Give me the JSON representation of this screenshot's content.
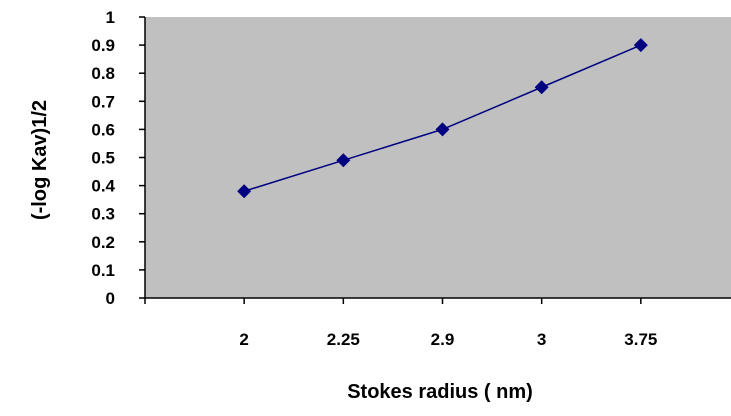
{
  "chart_data": {
    "type": "line",
    "title": "",
    "xlabel": "Stokes radius ( nm)",
    "ylabel": "(-log Kav)1/2",
    "categories": [
      "2",
      "2.25",
      "2.9",
      "3",
      "3.75"
    ],
    "series": [
      {
        "values": [
          0.38,
          0.49,
          0.6,
          0.75,
          0.9
        ]
      }
    ],
    "ylim": [
      0,
      1
    ],
    "yticks": [
      "0",
      "0.1",
      "0.2",
      "0.3",
      "0.4",
      "0.5",
      "0.6",
      "0.7",
      "0.8",
      "0.9",
      "1"
    ],
    "grid": false,
    "legend": "none",
    "colors": {
      "plot_background": "#c0c0c0",
      "line": "#000080",
      "marker": "#000080",
      "axis": "#000000"
    }
  }
}
